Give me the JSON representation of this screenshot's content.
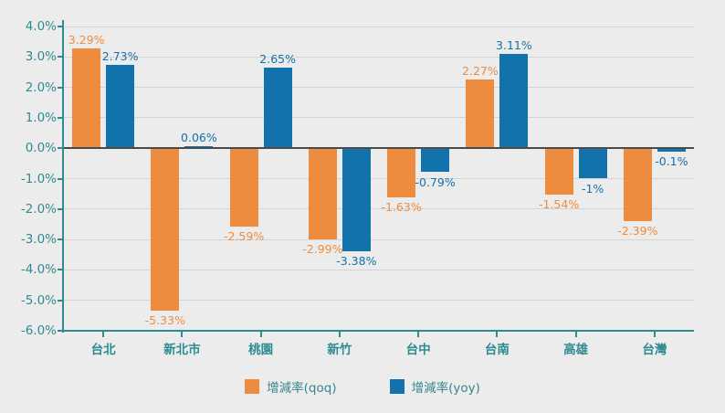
{
  "chart_data": {
    "type": "bar",
    "title": "",
    "xlabel": "",
    "ylabel": "",
    "categories": [
      "台北",
      "新北市",
      "桃園",
      "新竹",
      "台中",
      "台南",
      "高雄",
      "台灣"
    ],
    "series": [
      {
        "name": "增減率(qoq)",
        "color": "#ED8C3E",
        "values": [
          3.29,
          -5.33,
          -2.59,
          -2.99,
          -1.63,
          2.27,
          -1.54,
          -2.39
        ],
        "labels": [
          "3.29%",
          "-5.33%",
          "-2.59%",
          "-2.99%",
          "-1.63%",
          "2.27%",
          "-1.54%",
          "-2.39%"
        ]
      },
      {
        "name": "增減率(yoy)",
        "color": "#1272AC",
        "values": [
          2.73,
          0.06,
          2.65,
          -3.38,
          -0.79,
          3.11,
          -1.0,
          -0.1
        ],
        "labels": [
          "2.73%",
          "0.06%",
          "2.65%",
          "-3.38%",
          "-0.79%",
          "3.11%",
          "-1%",
          "-0.1%"
        ]
      }
    ],
    "ylim": [
      -6,
      4
    ],
    "ytick_step": 1,
    "ytick_labels": [
      "4.0%",
      "3.0%",
      "2.0%",
      "1.0%",
      "0.0%",
      "-1.0%",
      "-2.0%",
      "-3.0%",
      "-4.0%",
      "-5.0%",
      "-6.0%"
    ],
    "grid": true,
    "legend_position": "bottom"
  },
  "colors": {
    "background": "#ECECEC",
    "axis": "#2E8B91",
    "zero_line": "#4A4A4A",
    "gridline": "#D4D4D4",
    "qoq": "#ED8C3E",
    "yoy": "#1272AC",
    "legend_text": "#35868B"
  }
}
